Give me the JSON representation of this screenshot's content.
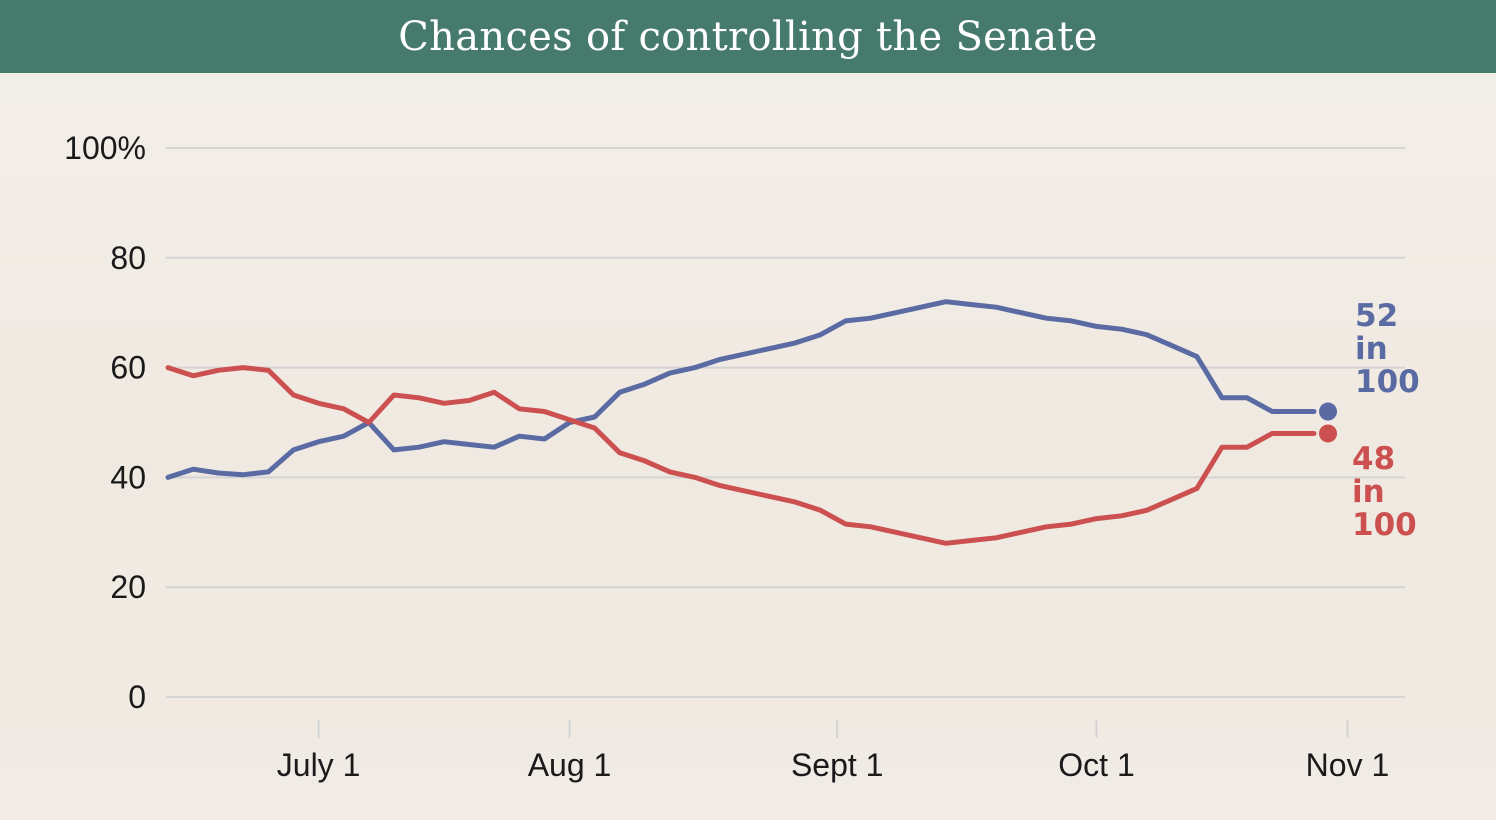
{
  "header": {
    "title": "Chances of controlling the Senate"
  },
  "colors": {
    "header_bg": "#457a6c",
    "blue": "#5a6aa3",
    "red": "#cc5050",
    "grid": "#d4d4d4",
    "background": "#f1ede6"
  },
  "chart_data": {
    "type": "line",
    "title": "Chances of controlling the Senate",
    "xlabel": "",
    "ylabel": "",
    "ylim": [
      0,
      100
    ],
    "yticks": [
      0,
      20,
      40,
      60,
      80,
      100
    ],
    "ytick_labels": [
      "0",
      "20",
      "40",
      "60",
      "80",
      "100%"
    ],
    "xlim": [
      -18,
      134
    ],
    "xticks": [
      0,
      30,
      62,
      93,
      123
    ],
    "xtick_labels": [
      "July 1",
      "Aug 1",
      "Sept 1",
      "Oct 1",
      "Nov 1"
    ],
    "grid": true,
    "series": [
      {
        "color": "#5a6aa3",
        "x": [
          -18,
          -15,
          -12,
          -9,
          -6,
          -3,
          0,
          3,
          6,
          9,
          12,
          15,
          18,
          21,
          24,
          27,
          30,
          33,
          36,
          39,
          42,
          45,
          48,
          51,
          54,
          57,
          60,
          63,
          66,
          69,
          72,
          75,
          78,
          81,
          84,
          87,
          90,
          93,
          96,
          99,
          102,
          105,
          108,
          111,
          114,
          116,
          119
        ],
        "values": [
          40,
          41.5,
          40.8,
          40.5,
          41,
          45,
          46.5,
          47.5,
          50,
          45,
          45.5,
          46.5,
          46,
          45.5,
          47.5,
          47,
          50,
          51,
          55.5,
          57,
          59,
          60,
          61.5,
          62.5,
          63.5,
          64.5,
          66,
          68.5,
          69,
          70,
          71,
          72,
          71.5,
          71,
          70,
          69,
          68.5,
          67.5,
          67,
          66,
          64,
          62,
          54.5,
          54.5,
          52,
          52,
          52
        ]
      },
      {
        "color": "#cc5050",
        "x": [
          -18,
          -15,
          -12,
          -9,
          -6,
          -3,
          0,
          3,
          6,
          9,
          12,
          15,
          18,
          21,
          24,
          27,
          30,
          33,
          36,
          39,
          42,
          45,
          48,
          51,
          54,
          57,
          60,
          63,
          66,
          69,
          72,
          75,
          78,
          81,
          84,
          87,
          90,
          93,
          96,
          99,
          102,
          105,
          108,
          111,
          114,
          116,
          119
        ],
        "values": [
          60,
          58.5,
          59.5,
          60,
          59.5,
          55,
          53.5,
          52.5,
          50,
          55,
          54.5,
          53.5,
          54,
          55.5,
          52.5,
          52,
          50.5,
          49,
          44.5,
          43,
          41,
          40,
          38.5,
          37.5,
          36.5,
          35.5,
          34,
          31.5,
          31,
          30,
          29,
          28,
          28.5,
          29,
          30,
          31,
          31.5,
          32.5,
          33,
          34,
          36,
          38,
          45.5,
          45.5,
          48,
          48,
          48
        ]
      }
    ],
    "annotations": [
      {
        "lines": [
          "52",
          "in",
          "100"
        ],
        "color": "#5a6aa3",
        "value": 52
      },
      {
        "lines": [
          "48",
          "in",
          "100"
        ],
        "color": "#cc5050",
        "value": 48
      }
    ]
  }
}
